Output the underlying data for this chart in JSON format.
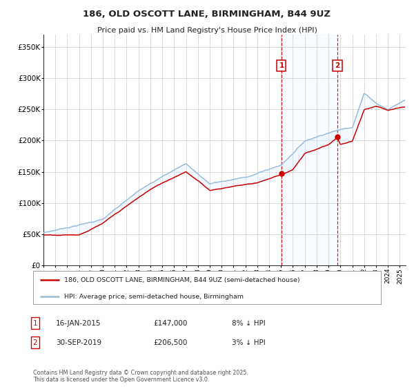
{
  "title": "186, OLD OSCOTT LANE, BIRMINGHAM, B44 9UZ",
  "subtitle": "Price paid vs. HM Land Registry's House Price Index (HPI)",
  "legend_line1": "186, OLD OSCOTT LANE, BIRMINGHAM, B44 9UZ (semi-detached house)",
  "legend_line2": "HPI: Average price, semi-detached house, Birmingham",
  "footer": "Contains HM Land Registry data © Crown copyright and database right 2025.\nThis data is licensed under the Open Government Licence v3.0.",
  "sale1_date": "16-JAN-2015",
  "sale1_price": "£147,000",
  "sale1_hpi": "8% ↓ HPI",
  "sale2_date": "30-SEP-2019",
  "sale2_price": "£206,500",
  "sale2_hpi": "3% ↓ HPI",
  "sale1_x": 2015.04,
  "sale1_y": 147000,
  "sale2_x": 2019.75,
  "sale2_y": 206500,
  "line_color_red": "#cc0000",
  "line_color_blue": "#99bbdd",
  "fill_color": "#ddeeff",
  "marker_color_red": "#cc0000",
  "vline_color": "#cc0000",
  "background_color": "#ffffff",
  "grid_color": "#cccccc",
  "ylim": [
    0,
    370000
  ],
  "xlim_start": 1995,
  "xlim_end": 2025.5
}
